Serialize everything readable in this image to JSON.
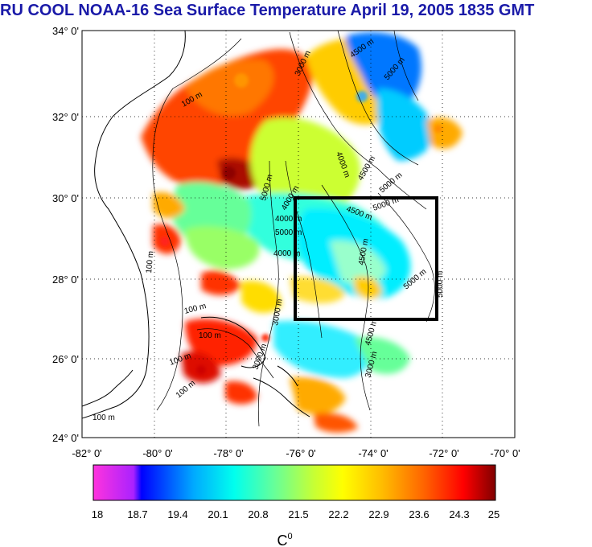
{
  "title": "RU COOL  NOAA-16 Sea Surface Temperature April 19, 2005 1835 GMT",
  "map": {
    "lat_ticks": [
      "34° 0'",
      "32° 0'",
      "30° 0'",
      "28° 0'",
      "26° 0'",
      "24° 0'"
    ],
    "lon_ticks": [
      "-82° 0'",
      "-80° 0'",
      "-78° 0'",
      "-76° 0'",
      "-74° 0'",
      "-72° 0'",
      "-70° 0'"
    ],
    "lat_range": [
      24,
      34
    ],
    "lon_range": [
      -82,
      -70
    ],
    "study_box": {
      "lon": [
        -76,
        -72
      ],
      "lat": [
        27,
        30
      ]
    },
    "contour_labels": [
      "100 m",
      "100 m",
      "100 m",
      "100 m",
      "100 m",
      "100 m",
      "100 m",
      "3000 m",
      "4500 m",
      "5000 m",
      "4000 m",
      "4500 m",
      "5000 m",
      "5000 m",
      "4000 m",
      "4500 m",
      "5000 m",
      "5000 m",
      "4500 m",
      "5000 m",
      "4500 m",
      "5000 m",
      "3000 m",
      "4000 m",
      "4000 m",
      "3000 m",
      "3000 m"
    ]
  },
  "colorbar": {
    "ticks": [
      "18",
      "18.7",
      "19.4",
      "20.1",
      "20.8",
      "21.5",
      "22.2",
      "22.9",
      "23.6",
      "24.3",
      "25"
    ],
    "unit": "C",
    "unit_sup": "0",
    "colors": [
      "#ff33dd",
      "#0000ff",
      "#00aaff",
      "#00ffee",
      "#66ff99",
      "#c8ff33",
      "#ffff00",
      "#ffbb00",
      "#ff6600",
      "#ff0000",
      "#800000"
    ]
  }
}
